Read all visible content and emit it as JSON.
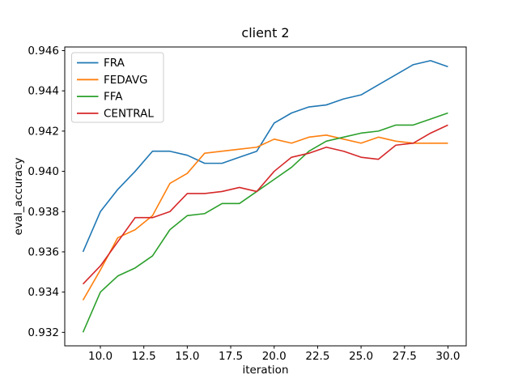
{
  "figure": {
    "title": "client 2",
    "xlabel": "iteration",
    "ylabel": "eval_accuracy"
  },
  "chart_data": {
    "type": "line",
    "title": "client 2",
    "xlabel": "iteration",
    "ylabel": "eval_accuracy",
    "x": [
      9,
      10,
      11,
      12,
      13,
      14,
      15,
      16,
      17,
      18,
      19,
      20,
      21,
      22,
      23,
      24,
      25,
      26,
      27,
      28,
      29,
      30
    ],
    "series": [
      {
        "name": "FRA",
        "color": "#1f77b4",
        "values": [
          0.936,
          0.938,
          0.9391,
          0.94,
          0.941,
          0.941,
          0.9408,
          0.9404,
          0.9404,
          0.9407,
          0.941,
          0.9424,
          0.9429,
          0.9432,
          0.9433,
          0.9436,
          0.9438,
          0.9443,
          0.9448,
          0.9453,
          0.9455,
          0.9452
        ]
      },
      {
        "name": "FEDAVG",
        "color": "#ff7f0e",
        "values": [
          0.9336,
          0.9351,
          0.9367,
          0.9371,
          0.9378,
          0.9394,
          0.9399,
          0.9409,
          0.941,
          0.9411,
          0.9412,
          0.9416,
          0.9414,
          0.9417,
          0.9418,
          0.9416,
          0.9414,
          0.9417,
          0.9415,
          0.9414,
          0.9414,
          0.9414
        ]
      },
      {
        "name": "FFA",
        "color": "#2ca02c",
        "values": [
          0.932,
          0.934,
          0.9348,
          0.9352,
          0.9358,
          0.9371,
          0.9378,
          0.9379,
          0.9384,
          0.9384,
          0.939,
          0.9396,
          0.9402,
          0.941,
          0.9415,
          0.9417,
          0.9419,
          0.942,
          0.9423,
          0.9423,
          0.9426,
          0.9429
        ]
      },
      {
        "name": "CENTRAL",
        "color": "#d62728",
        "values": [
          0.9344,
          0.9353,
          0.9365,
          0.9377,
          0.9377,
          0.938,
          0.9389,
          0.9389,
          0.939,
          0.9392,
          0.939,
          0.94,
          0.9407,
          0.9409,
          0.9412,
          0.941,
          0.9407,
          0.9406,
          0.9413,
          0.9414,
          0.9419,
          0.9423
        ]
      }
    ],
    "xticks": {
      "values": [
        10,
        12.5,
        15,
        17.5,
        20,
        22.5,
        25,
        27.5,
        30
      ],
      "labels": [
        "10.0",
        "12.5",
        "15.0",
        "17.5",
        "20.0",
        "22.5",
        "25.0",
        "27.5",
        "30.0"
      ]
    },
    "yticks": {
      "values": [
        0.932,
        0.934,
        0.936,
        0.938,
        0.94,
        0.942,
        0.944,
        0.946
      ],
      "labels": [
        "0.932",
        "0.934",
        "0.936",
        "0.938",
        "0.940",
        "0.942",
        "0.944",
        "0.946"
      ]
    },
    "xlim": [
      7.95,
      31.05
    ],
    "ylim": [
      0.93133,
      0.94618
    ],
    "grid": false,
    "legend_position": "upper left",
    "legend_entries": [
      "FRA",
      "FEDAVG",
      "FFA",
      "CENTRAL"
    ]
  }
}
